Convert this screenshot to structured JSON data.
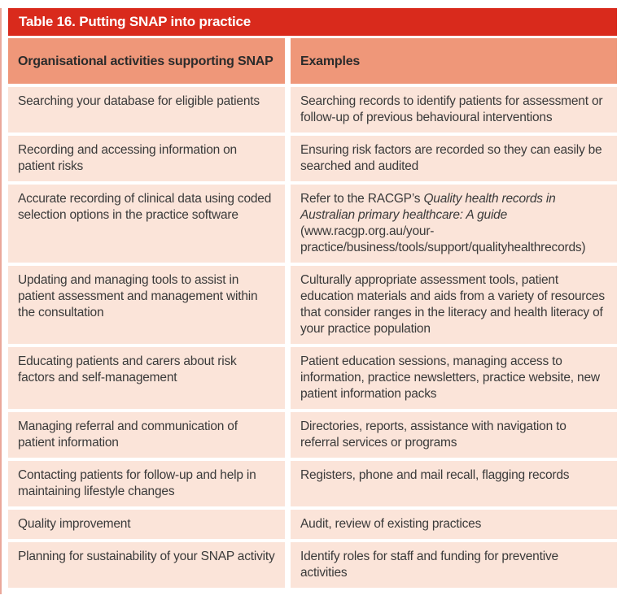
{
  "colors": {
    "title_bar_bg": "#d92a1c",
    "title_text": "#ffffff",
    "header_row_bg": "#ef9779",
    "body_row_bg": "#fbe4d9",
    "body_text": "#3a3a3a",
    "page_bg": "#ffffff",
    "left_edge_rule": "#eaa79a"
  },
  "table": {
    "title": "Table 16. Putting SNAP into practice",
    "columns": [
      "Organisational activities supporting SNAP",
      "Examples"
    ],
    "rows": [
      {
        "activity": "Searching your database for eligible patients",
        "example": "Searching records to identify patients for assessment or follow-up of previous behavioural interventions"
      },
      {
        "activity": "Recording and accessing information on patient risks",
        "example": "Ensuring risk factors are recorded so they can easily be searched and audited"
      },
      {
        "activity": "Accurate recording of clinical data using coded selection options in the practice software",
        "example": [
          {
            "text": "Refer to the RACGP’s ",
            "italic": false
          },
          {
            "text": "Quality health records in Australian primary healthcare: A guide",
            "italic": true
          },
          {
            "text": " (www.racgp.org.au/your-practice/business/tools/support/qualityhealthrecords)",
            "italic": false
          }
        ]
      },
      {
        "activity": "Updating and managing tools to assist in patient assessment and management within the consultation",
        "example": "Culturally appropriate assessment tools, patient education materials and aids from a variety of resources that consider ranges in the literacy and health literacy of your practice population"
      },
      {
        "activity": "Educating patients and carers about risk factors and self-management",
        "example": "Patient education sessions, managing access to information, practice newsletters, practice website, new patient information packs"
      },
      {
        "activity": "Managing referral and communication of patient information",
        "example": "Directories, reports, assistance with navigation to referral services or programs"
      },
      {
        "activity": "Contacting patients for follow-up and help in maintaining lifestyle changes",
        "example": "Registers, phone and mail recall, flagging records"
      },
      {
        "activity": "Quality improvement",
        "example": "Audit, review of existing practices"
      },
      {
        "activity": "Planning for sustainability of your SNAP activity",
        "example": "Identify roles for staff and funding for preventive activities"
      }
    ]
  }
}
